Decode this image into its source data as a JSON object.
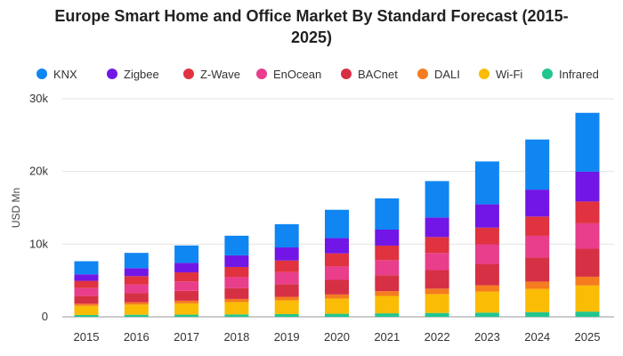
{
  "chart_data": {
    "type": "bar",
    "stacked": true,
    "title_lines": [
      "Europe Smart Home and Office Market By Standard Forecast (2015-",
      "2025)"
    ],
    "xlabel": "",
    "ylabel": "USD Mn",
    "ylim": [
      0,
      30000
    ],
    "yticks": [
      0,
      10000,
      20000,
      30000
    ],
    "ytick_labels": [
      "0",
      "10k",
      "20k",
      "30k"
    ],
    "grid": true,
    "legend_position": "top",
    "categories": [
      "2015",
      "2016",
      "2017",
      "2018",
      "2019",
      "2020",
      "2021",
      "2022",
      "2023",
      "2024",
      "2025"
    ],
    "series": [
      {
        "name": "Infrared",
        "color": "#22c58f",
        "values": [
          250,
          280,
          300,
          330,
          370,
          420,
          480,
          530,
          580,
          650,
          720
        ]
      },
      {
        "name": "Wi-Fi",
        "color": "#fbbc05",
        "values": [
          1250,
          1400,
          1550,
          1700,
          1900,
          2100,
          2400,
          2600,
          2900,
          3200,
          3600
        ]
      },
      {
        "name": "DALI",
        "color": "#f57c1f",
        "values": [
          300,
          320,
          370,
          430,
          480,
          560,
          650,
          750,
          850,
          1000,
          1200
        ]
      },
      {
        "name": "BACnet",
        "color": "#d63045",
        "values": [
          1100,
          1250,
          1350,
          1500,
          1750,
          2000,
          2200,
          2550,
          2950,
          3300,
          3850
        ]
      },
      {
        "name": "EnOcean",
        "color": "#e83e8c",
        "values": [
          1050,
          1200,
          1300,
          1500,
          1650,
          1850,
          2070,
          2350,
          2700,
          3000,
          3500
        ]
      },
      {
        "name": "Z-Wave",
        "color": "#e0323f",
        "values": [
          1000,
          1150,
          1250,
          1400,
          1600,
          1800,
          2000,
          2200,
          2300,
          2650,
          3000
        ]
      },
      {
        "name": "Zigbee",
        "color": "#7116e6",
        "values": [
          900,
          1100,
          1300,
          1600,
          1800,
          2100,
          2200,
          2700,
          3200,
          3700,
          4100
        ]
      },
      {
        "name": "KNX",
        "color": "#0f86f2",
        "values": [
          1800,
          2100,
          2400,
          2700,
          3200,
          3900,
          4300,
          5000,
          5900,
          6900,
          8100
        ]
      }
    ],
    "legend_order": [
      "KNX",
      "Zigbee",
      "Z-Wave",
      "EnOcean",
      "BACnet",
      "DALI",
      "Wi-Fi",
      "Infrared"
    ]
  }
}
